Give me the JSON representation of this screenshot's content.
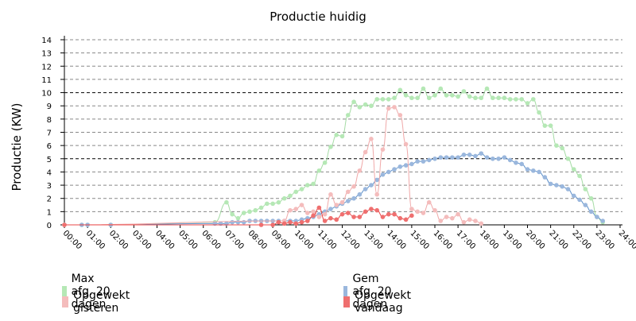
{
  "chart_data": {
    "type": "line",
    "title": "Productie huidig",
    "ylabel": "Productie (KW)",
    "xlabel": "",
    "ylim": [
      0,
      14
    ],
    "xlim": [
      0,
      24
    ],
    "yticks": [
      0,
      1,
      2,
      3,
      4,
      5,
      6,
      7,
      8,
      9,
      10,
      11,
      12,
      13,
      14
    ],
    "highlight_gridlines": [
      5,
      10
    ],
    "xticks": [
      "00:00",
      "01:00",
      "02:00",
      "03:00",
      "04:00",
      "05:00",
      "06:00",
      "07:00",
      "08:00",
      "09:00",
      "10:00",
      "11:00",
      "12:00",
      "13:00",
      "14:00",
      "15:00",
      "16:00",
      "17:00",
      "18:00",
      "19:00",
      "20:00",
      "21:00",
      "22:00",
      "23:00",
      "24:00"
    ],
    "grid": true,
    "legend_position": "bottom",
    "series": [
      {
        "name": "Max afg. 20 dagen",
        "color": "#b5e8b5",
        "line_color": "#a6dca6",
        "x": [
          0,
          0.75,
          1,
          2,
          6.5,
          7,
          7.25,
          7.5,
          7.75,
          8,
          8.25,
          8.5,
          8.75,
          9,
          9.25,
          9.5,
          9.75,
          10,
          10.25,
          10.5,
          10.75,
          11,
          11.25,
          11.5,
          11.75,
          12,
          12.25,
          12.5,
          12.75,
          13,
          13.25,
          13.5,
          13.75,
          14,
          14.25,
          14.5,
          14.75,
          15,
          15.25,
          15.5,
          15.75,
          16,
          16.25,
          16.5,
          16.75,
          17,
          17.25,
          17.5,
          17.75,
          18,
          18.25,
          18.5,
          18.75,
          19,
          19.25,
          19.5,
          19.75,
          20,
          20.25,
          20.5,
          20.75,
          21,
          21.25,
          21.5,
          21.75,
          22,
          22.25,
          22.5,
          22.75,
          23,
          23.25
        ],
        "values": [
          0,
          0,
          0,
          0,
          0.2,
          1.7,
          0.8,
          0.5,
          0.9,
          1.0,
          1.1,
          1.3,
          1.6,
          1.6,
          1.7,
          2.0,
          2.2,
          2.5,
          2.7,
          3.0,
          3.1,
          4.1,
          4.7,
          5.9,
          6.8,
          6.7,
          8.3,
          9.3,
          8.9,
          9.1,
          9.0,
          9.5,
          9.5,
          9.5,
          9.6,
          10.2,
          9.8,
          9.6,
          9.6,
          10.3,
          9.6,
          9.8,
          10.3,
          9.8,
          9.8,
          9.7,
          10.1,
          9.7,
          9.6,
          9.6,
          10.3,
          9.6,
          9.6,
          9.6,
          9.5,
          9.5,
          9.5,
          9.2,
          9.5,
          8.5,
          7.5,
          7.5,
          6.0,
          5.8,
          5.0,
          4.2,
          3.7,
          2.7,
          2.0,
          0.6,
          0.2
        ]
      },
      {
        "name": "Gem afg. 20 dagen",
        "color": "#9ab7dd",
        "line_color": "#5b8fc9",
        "x": [
          0,
          0.75,
          1,
          2,
          6.5,
          6.75,
          7,
          7.25,
          7.5,
          7.75,
          8,
          8.25,
          8.5,
          8.75,
          9,
          9.25,
          9.5,
          9.75,
          10,
          10.25,
          10.5,
          10.75,
          11,
          11.25,
          11.5,
          11.75,
          12,
          12.25,
          12.5,
          12.75,
          13,
          13.25,
          13.5,
          13.75,
          14,
          14.25,
          14.5,
          14.75,
          15,
          15.25,
          15.5,
          15.75,
          16,
          16.25,
          16.5,
          16.75,
          17,
          17.25,
          17.5,
          17.75,
          18,
          18.25,
          18.5,
          18.75,
          19,
          19.25,
          19.5,
          19.75,
          20,
          20.25,
          20.5,
          20.75,
          21,
          21.25,
          21.5,
          21.75,
          22,
          22.25,
          22.5,
          22.75,
          23,
          23.25
        ],
        "values": [
          0,
          0,
          0,
          0,
          0.1,
          0.1,
          0.1,
          0.2,
          0.2,
          0.2,
          0.3,
          0.3,
          0.3,
          0.3,
          0.3,
          0.3,
          0.3,
          0.3,
          0.3,
          0.4,
          0.5,
          0.6,
          0.8,
          1.0,
          1.2,
          1.4,
          1.6,
          1.8,
          2.0,
          2.3,
          2.7,
          3.0,
          3.4,
          3.8,
          4.0,
          4.2,
          4.4,
          4.5,
          4.6,
          4.8,
          4.8,
          4.9,
          5.0,
          5.1,
          5.1,
          5.1,
          5.1,
          5.3,
          5.3,
          5.2,
          5.4,
          5.1,
          5.0,
          5.0,
          5.1,
          4.9,
          4.7,
          4.6,
          4.2,
          4.1,
          4.0,
          3.6,
          3.1,
          3.0,
          2.9,
          2.7,
          2.2,
          1.9,
          1.5,
          1.0,
          0.6,
          0.3
        ]
      },
      {
        "name": "Opgewekt gisteren",
        "color": "#f4bcbc",
        "line_color": "#f0aaaa",
        "x": [
          0,
          9.5,
          9.75,
          10,
          10.25,
          10.5,
          10.75,
          11,
          11.25,
          11.5,
          11.75,
          12,
          12.25,
          12.5,
          12.75,
          13,
          13.25,
          13.5,
          13.75,
          14,
          14.25,
          14.5,
          14.75,
          15,
          15.25,
          15.5,
          15.75,
          16,
          16.25,
          16.5,
          16.75,
          17,
          17.25,
          17.5,
          17.75,
          18
        ],
        "values": [
          0,
          0.3,
          1.1,
          1.2,
          1.5,
          0.9,
          1.0,
          0.6,
          0.8,
          2.3,
          1.5,
          1.7,
          2.5,
          2.9,
          4.1,
          5.5,
          6.5,
          2.3,
          5.7,
          8.8,
          8.9,
          8.3,
          6.1,
          1.2,
          1.0,
          0.9,
          1.7,
          1.1,
          0.3,
          0.6,
          0.5,
          0.8,
          0.2,
          0.4,
          0.3,
          0.1
        ]
      },
      {
        "name": "Opgewekt vandaag",
        "color": "#ef6f6f",
        "line_color": "#e84848",
        "x": [
          0,
          8.5,
          9,
          9.25,
          9.5,
          9.75,
          10,
          10.25,
          10.5,
          10.75,
          11,
          11.25,
          11.5,
          11.75,
          12,
          12.25,
          12.5,
          12.75,
          13,
          13.25,
          13.5,
          13.75,
          14,
          14.25,
          14.5,
          14.75,
          15
        ],
        "values": [
          0,
          0,
          0,
          0.2,
          0.1,
          0.2,
          0.1,
          0.2,
          0.3,
          0.7,
          1.3,
          0.3,
          0.5,
          0.4,
          0.8,
          0.9,
          0.6,
          0.6,
          1.0,
          1.2,
          1.1,
          0.6,
          0.8,
          0.8,
          0.5,
          0.4,
          0.7
        ]
      }
    ]
  }
}
